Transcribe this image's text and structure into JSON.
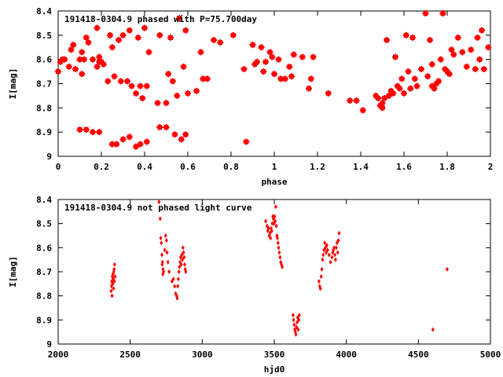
{
  "chart_data": [
    {
      "type": "scatter",
      "title": "191418-0304.9 phased with P=75.700day",
      "xlabel": "phase",
      "ylabel": "I[mag]",
      "xlim": [
        0,
        2
      ],
      "ylim": [
        9,
        8.4
      ],
      "y_inverted": true,
      "grid": false,
      "marker_color": "#ff0000",
      "marker": "star-large",
      "x_ticks": [
        "0",
        "0.2",
        "0.4",
        "0.6",
        "0.8",
        "1",
        "1.2",
        "1.4",
        "1.6",
        "1.8",
        "2"
      ],
      "y_ticks": [
        "8.4",
        "8.5",
        "8.6",
        "8.7",
        "8.8",
        "8.9",
        "9"
      ],
      "points": [
        [
          0.0,
          8.65
        ],
        [
          0.01,
          8.61
        ],
        [
          0.02,
          8.6
        ],
        [
          0.03,
          8.6
        ],
        [
          0.05,
          8.63
        ],
        [
          0.06,
          8.56
        ],
        [
          0.07,
          8.54
        ],
        [
          0.08,
          8.64
        ],
        [
          0.1,
          8.6
        ],
        [
          0.11,
          8.57
        ],
        [
          0.11,
          8.66
        ],
        [
          0.12,
          8.6
        ],
        [
          0.13,
          8.51
        ],
        [
          0.14,
          8.53
        ],
        [
          0.16,
          8.6
        ],
        [
          0.18,
          8.63
        ],
        [
          0.18,
          8.47
        ],
        [
          0.19,
          8.59
        ],
        [
          0.19,
          8.61
        ],
        [
          0.2,
          8.61
        ],
        [
          0.21,
          8.62
        ],
        [
          0.23,
          8.69
        ],
        [
          0.24,
          8.5
        ],
        [
          0.25,
          8.55
        ],
        [
          0.26,
          8.67
        ],
        [
          0.28,
          8.52
        ],
        [
          0.29,
          8.69
        ],
        [
          0.3,
          8.5
        ],
        [
          0.32,
          8.69
        ],
        [
          0.33,
          8.48
        ],
        [
          0.34,
          8.71
        ],
        [
          0.36,
          8.74
        ],
        [
          0.37,
          8.51
        ],
        [
          0.38,
          8.71
        ],
        [
          0.39,
          8.76
        ],
        [
          0.4,
          8.47
        ],
        [
          0.41,
          8.71
        ],
        [
          0.42,
          8.57
        ],
        [
          0.46,
          8.78
        ],
        [
          0.47,
          8.5
        ],
        [
          0.5,
          8.78
        ],
        [
          0.51,
          8.66
        ],
        [
          0.52,
          8.51
        ],
        [
          0.53,
          8.69
        ],
        [
          0.55,
          8.75
        ],
        [
          0.56,
          8.43
        ],
        [
          0.58,
          8.63
        ],
        [
          0.59,
          8.48
        ],
        [
          0.6,
          8.74
        ],
        [
          0.64,
          8.73
        ],
        [
          0.66,
          8.57
        ],
        [
          0.67,
          8.68
        ],
        [
          0.69,
          8.68
        ],
        [
          0.72,
          8.52
        ],
        [
          0.75,
          8.53
        ],
        [
          0.81,
          8.5
        ],
        [
          0.86,
          8.64
        ],
        [
          0.9,
          8.54
        ],
        [
          0.91,
          8.62
        ],
        [
          0.92,
          8.61
        ],
        [
          0.94,
          8.55
        ],
        [
          0.95,
          8.65
        ],
        [
          0.96,
          8.61
        ],
        [
          0.98,
          8.57
        ],
        [
          0.99,
          8.59
        ],
        [
          1.0,
          8.66
        ],
        [
          1.02,
          8.6
        ],
        [
          1.03,
          8.68
        ],
        [
          1.05,
          8.68
        ],
        [
          1.07,
          8.63
        ],
        [
          1.08,
          8.67
        ],
        [
          1.09,
          8.58
        ],
        [
          1.13,
          8.59
        ],
        [
          1.16,
          8.72
        ],
        [
          1.17,
          8.68
        ],
        [
          1.18,
          8.59
        ],
        [
          1.25,
          8.74
        ],
        [
          1.35,
          8.77
        ],
        [
          1.38,
          8.77
        ],
        [
          1.41,
          8.81
        ],
        [
          1.47,
          8.75
        ],
        [
          1.48,
          8.76
        ],
        [
          1.49,
          8.79
        ],
        [
          1.5,
          8.78
        ],
        [
          1.5,
          8.8
        ],
        [
          1.51,
          8.76
        ],
        [
          1.52,
          8.52
        ],
        [
          1.53,
          8.75
        ],
        [
          1.54,
          8.73
        ],
        [
          1.55,
          8.74
        ],
        [
          1.56,
          8.59
        ],
        [
          1.57,
          8.71
        ],
        [
          1.58,
          8.72
        ],
        [
          1.59,
          8.68
        ],
        [
          1.6,
          8.74
        ],
        [
          1.61,
          8.5
        ],
        [
          1.62,
          8.65
        ],
        [
          1.63,
          8.72
        ],
        [
          1.64,
          8.51
        ],
        [
          1.65,
          8.68
        ],
        [
          1.66,
          8.71
        ],
        [
          1.68,
          8.64
        ],
        [
          1.7,
          8.41
        ],
        [
          1.71,
          8.67
        ],
        [
          1.72,
          8.52
        ],
        [
          1.73,
          8.71
        ],
        [
          1.73,
          8.62
        ],
        [
          1.74,
          8.72
        ],
        [
          1.75,
          8.7
        ],
        [
          1.76,
          8.69
        ],
        [
          1.77,
          8.6
        ],
        [
          1.78,
          8.41
        ],
        [
          1.79,
          8.64
        ],
        [
          1.8,
          8.65
        ],
        [
          1.81,
          8.66
        ],
        [
          1.82,
          8.56
        ],
        [
          1.83,
          8.58
        ],
        [
          1.85,
          8.51
        ],
        [
          1.87,
          8.57
        ],
        [
          1.89,
          8.63
        ],
        [
          1.91,
          8.56
        ],
        [
          1.93,
          8.64
        ],
        [
          1.94,
          8.51
        ],
        [
          1.95,
          8.6
        ],
        [
          1.96,
          8.48
        ],
        [
          1.97,
          8.64
        ],
        [
          1.99,
          8.55
        ]
      ],
      "low_branch_points": [
        [
          0.1,
          8.89
        ],
        [
          0.13,
          8.89
        ],
        [
          0.16,
          8.9
        ],
        [
          0.19,
          8.9
        ],
        [
          0.25,
          8.95
        ],
        [
          0.27,
          8.95
        ],
        [
          0.3,
          8.93
        ],
        [
          0.33,
          8.92
        ],
        [
          0.36,
          8.96
        ],
        [
          0.38,
          8.95
        ],
        [
          0.41,
          8.94
        ],
        [
          0.47,
          8.88
        ],
        [
          0.5,
          8.88
        ],
        [
          0.54,
          8.91
        ],
        [
          0.57,
          8.93
        ],
        [
          0.59,
          8.91
        ],
        [
          0.87,
          8.94
        ]
      ]
    },
    {
      "type": "scatter",
      "title": "191418-0304.9 not phased light curve",
      "xlabel": "hjd0",
      "ylabel": "I[mag]",
      "xlim": [
        2000,
        5000
      ],
      "ylim": [
        9,
        8.4
      ],
      "y_inverted": true,
      "grid": false,
      "marker_color": "#ff0000",
      "marker": "diamond-small",
      "x_ticks": [
        "2000",
        "2500",
        "3000",
        "3500",
        "4000",
        "4500",
        "5000"
      ],
      "y_ticks": [
        "8.4",
        "8.5",
        "8.6",
        "8.7",
        "8.8",
        "8.9",
        "9"
      ],
      "points": [
        [
          2368,
          8.78
        ],
        [
          2370,
          8.76
        ],
        [
          2372,
          8.74
        ],
        [
          2374,
          8.8
        ],
        [
          2376,
          8.72
        ],
        [
          2378,
          8.75
        ],
        [
          2380,
          8.71
        ],
        [
          2382,
          8.73
        ],
        [
          2384,
          8.77
        ],
        [
          2386,
          8.7
        ],
        [
          2388,
          8.69
        ],
        [
          2390,
          8.74
        ],
        [
          2392,
          8.67
        ],
        [
          2395,
          8.72
        ],
        [
          2700,
          8.41
        ],
        [
          2708,
          8.48
        ],
        [
          2712,
          8.56
        ],
        [
          2716,
          8.58
        ],
        [
          2720,
          8.63
        ],
        [
          2722,
          8.67
        ],
        [
          2724,
          8.66
        ],
        [
          2726,
          8.71
        ],
        [
          2728,
          8.69
        ],
        [
          2732,
          8.7
        ],
        [
          2740,
          8.61
        ],
        [
          2746,
          8.55
        ],
        [
          2752,
          8.57
        ],
        [
          2756,
          8.62
        ],
        [
          2762,
          8.66
        ],
        [
          2770,
          8.7
        ],
        [
          2790,
          8.74
        ],
        [
          2800,
          8.73
        ],
        [
          2808,
          8.76
        ],
        [
          2815,
          8.79
        ],
        [
          2822,
          8.8
        ],
        [
          2826,
          8.81
        ],
        [
          2830,
          8.76
        ],
        [
          2834,
          8.73
        ],
        [
          2838,
          8.7
        ],
        [
          2842,
          8.68
        ],
        [
          2846,
          8.66
        ],
        [
          2850,
          8.64
        ],
        [
          2854,
          8.67
        ],
        [
          2858,
          8.63
        ],
        [
          2862,
          8.65
        ],
        [
          2866,
          8.6
        ],
        [
          2870,
          8.62
        ],
        [
          2874,
          8.64
        ],
        [
          2878,
          8.67
        ],
        [
          2882,
          8.69
        ],
        [
          2886,
          8.7
        ],
        [
          3440,
          8.49
        ],
        [
          3450,
          8.51
        ],
        [
          3455,
          8.53
        ],
        [
          3460,
          8.52
        ],
        [
          3465,
          8.55
        ],
        [
          3470,
          8.54
        ],
        [
          3474,
          8.56
        ],
        [
          3478,
          8.52
        ],
        [
          3482,
          8.53
        ],
        [
          3486,
          8.5
        ],
        [
          3490,
          8.47
        ],
        [
          3494,
          8.48
        ],
        [
          3498,
          8.5
        ],
        [
          3502,
          8.47
        ],
        [
          3506,
          8.49
        ],
        [
          3510,
          8.43
        ],
        [
          3514,
          8.51
        ],
        [
          3518,
          8.55
        ],
        [
          3522,
          8.56
        ],
        [
          3526,
          8.58
        ],
        [
          3530,
          8.6
        ],
        [
          3535,
          8.62
        ],
        [
          3540,
          8.64
        ],
        [
          3545,
          8.66
        ],
        [
          3550,
          8.67
        ],
        [
          3555,
          8.68
        ],
        [
          3630,
          8.88
        ],
        [
          3634,
          8.9
        ],
        [
          3638,
          8.92
        ],
        [
          3642,
          8.94
        ],
        [
          3646,
          8.95
        ],
        [
          3650,
          8.96
        ],
        [
          3654,
          8.93
        ],
        [
          3658,
          8.91
        ],
        [
          3662,
          8.89
        ],
        [
          3666,
          8.94
        ],
        [
          3670,
          8.9
        ],
        [
          3674,
          8.88
        ],
        [
          3810,
          8.74
        ],
        [
          3815,
          8.76
        ],
        [
          3820,
          8.77
        ],
        [
          3825,
          8.72
        ],
        [
          3830,
          8.69
        ],
        [
          3835,
          8.65
        ],
        [
          3840,
          8.63
        ],
        [
          3845,
          8.61
        ],
        [
          3850,
          8.58
        ],
        [
          3855,
          8.6
        ],
        [
          3860,
          8.62
        ],
        [
          3865,
          8.59
        ],
        [
          3870,
          8.61
        ],
        [
          3880,
          8.63
        ],
        [
          3890,
          8.66
        ],
        [
          3900,
          8.64
        ],
        [
          3905,
          8.62
        ],
        [
          3910,
          8.61
        ],
        [
          3915,
          8.6
        ],
        [
          3920,
          8.63
        ],
        [
          3925,
          8.65
        ],
        [
          3930,
          8.6
        ],
        [
          3935,
          8.58
        ],
        [
          3940,
          8.62
        ],
        [
          3945,
          8.57
        ],
        [
          3950,
          8.54
        ],
        [
          4600,
          8.94
        ],
        [
          4700,
          8.69
        ]
      ]
    }
  ]
}
